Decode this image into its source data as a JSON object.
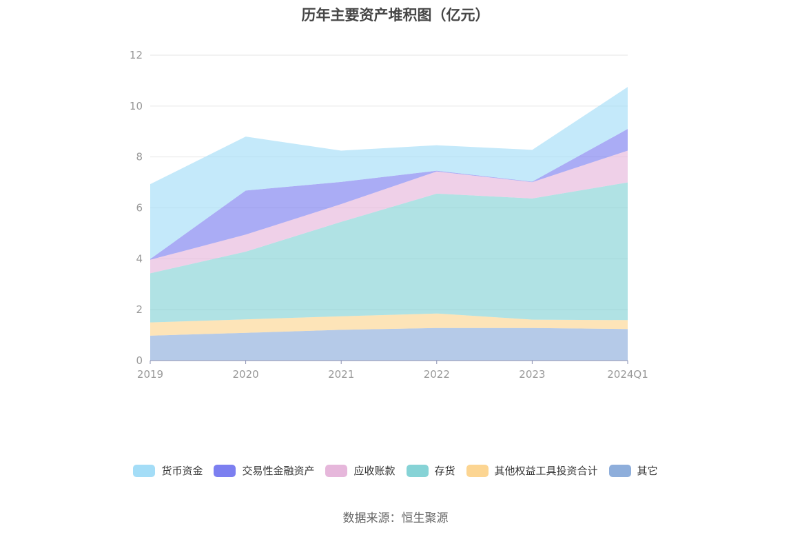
{
  "chart_data": {
    "type": "area",
    "stacked": true,
    "title": "历年主要资产堆积图（亿元）",
    "source": "数据来源：恒生聚源",
    "categories": [
      "2019",
      "2020",
      "2021",
      "2022",
      "2023",
      "2024Q1"
    ],
    "ylim": [
      0,
      12
    ],
    "yticks": [
      0,
      2,
      4,
      6,
      8,
      10,
      12
    ],
    "grid": true,
    "legend_position": "bottom",
    "series": [
      {
        "name": "其它",
        "color": "#8eaedb",
        "values": [
          0.98,
          1.09,
          1.21,
          1.28,
          1.28,
          1.24
        ]
      },
      {
        "name": "其他权益工具投资合计",
        "color": "#fcd592",
        "values": [
          0.52,
          0.53,
          0.53,
          0.57,
          0.33,
          0.35
        ]
      },
      {
        "name": "存货",
        "color": "#86d3d6",
        "values": [
          1.93,
          2.66,
          3.71,
          4.71,
          4.76,
          5.41
        ]
      },
      {
        "name": "应收账款",
        "color": "#e6b7db",
        "values": [
          0.53,
          0.67,
          0.7,
          0.87,
          0.64,
          1.25
        ]
      },
      {
        "name": "交易性金融资产",
        "color": "#7c7ff0",
        "values": [
          0.03,
          1.73,
          0.87,
          0.03,
          0.02,
          0.85
        ]
      },
      {
        "name": "货币资金",
        "color": "#a4ddf7",
        "values": [
          2.94,
          2.12,
          1.23,
          1.0,
          1.25,
          1.65
        ]
      }
    ],
    "legend_order": [
      "货币资金",
      "交易性金融资产",
      "应收账款",
      "存货",
      "其他权益工具投资合计",
      "其它"
    ]
  }
}
